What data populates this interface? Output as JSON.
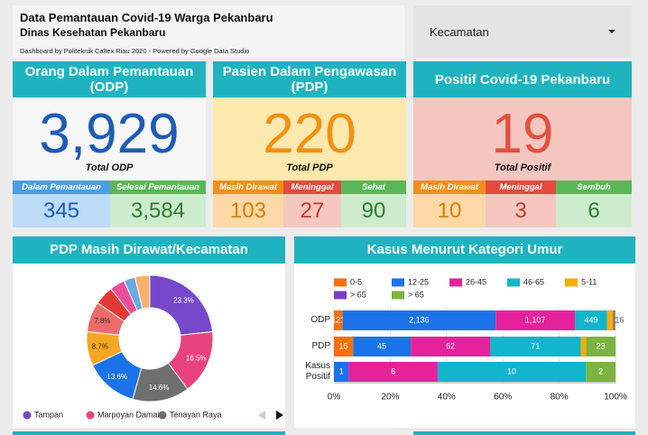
{
  "header": {
    "title": "Data Pemantauan Covid-19 Warga Pekanbaru",
    "subtitle": "Dinas Kesehatan Pekanbaru",
    "credit": "Dashboard by Politeknik Caltex Riau 2020 - Powered by Google Data Studio"
  },
  "filter": {
    "label": "Kecamatan"
  },
  "kpi_cards": [
    {
      "title": "Orang Dalam Pemantauan (ODP)",
      "value": "3,929",
      "total_label": "Total ODP",
      "breakdown": [
        {
          "label": "Dalam Pemantauan",
          "value": "345"
        },
        {
          "label": "Selesai Pemantauan",
          "value": "3,584"
        }
      ]
    },
    {
      "title": "Pasien Dalam Pengawasan (PDP)",
      "value": "220",
      "total_label": "Total PDP",
      "breakdown": [
        {
          "label": "Masih Dirawat",
          "value": "103"
        },
        {
          "label": "Meninggal",
          "value": "27"
        },
        {
          "label": "Sehat",
          "value": "90"
        }
      ]
    },
    {
      "title": "Positif Covid-19 Pekanbaru",
      "value": "19",
      "total_label": "Total Positif",
      "breakdown": [
        {
          "label": "Masih Dirawat",
          "value": "10"
        },
        {
          "label": "Meninggal",
          "value": "3"
        },
        {
          "label": "Sembuh",
          "value": "6"
        }
      ]
    }
  ],
  "chart_data": [
    {
      "type": "donut",
      "title": "PDP Masih Dirawat/Kecamatan",
      "categories": [
        "Tampan",
        "Marpoyan Damai",
        "Tenayan Raya",
        null,
        null,
        null,
        null,
        null,
        null,
        null
      ],
      "values": [
        23.3,
        16.5,
        14.6,
        13.6,
        8.7,
        7.8,
        4.9,
        3.9,
        2.9,
        3.8
      ],
      "value_labels": [
        "23.3%",
        "16.5%",
        "14.6%",
        "13.6%",
        "8.7%",
        "7.8%",
        null,
        null,
        null,
        null
      ],
      "colors": [
        "#7549c9",
        "#e8437d",
        "#6f6f6f",
        "#1a73e8",
        "#f5a623",
        "#ef6b6b",
        "#e53935",
        "#ec4f9a",
        "#6aa8e6",
        "#f6b26b"
      ]
    },
    {
      "type": "bar",
      "orientation": "horizontal",
      "stacking": "percent",
      "title": "Kasus Menurut Kategori Umur",
      "categories": [
        "ODP",
        "PDP",
        "Kasus Positif"
      ],
      "series": [
        {
          "name": "0-5",
          "color": "#fa6e0f",
          "values": [
            121,
            15,
            0
          ],
          "value_labels": [
            "121",
            "15",
            null
          ]
        },
        {
          "name": "12-25",
          "color": "#1a73e8",
          "values": [
            2136,
            45,
            1
          ],
          "value_labels": [
            "2,136",
            "45",
            "1"
          ]
        },
        {
          "name": "26-45",
          "color": "#e5229b",
          "values": [
            1107,
            62,
            6
          ],
          "value_labels": [
            "1,107",
            "62",
            "6"
          ]
        },
        {
          "name": "46-65",
          "color": "#12b5cb",
          "values": [
            449,
            71,
            10
          ],
          "value_labels": [
            "449",
            "71",
            "10"
          ]
        },
        {
          "name": "5-11",
          "color": "#f9ab00",
          "values": [
            84,
            4,
            0
          ],
          "value_labels": [
            null,
            "4",
            null
          ]
        },
        {
          "name": "> 65",
          "color": "#7b3fc4",
          "values": [
            16,
            0,
            0
          ],
          "value_labels": [
            null,
            null,
            null
          ]
        },
        {
          "name": "> 65",
          "color": "#7cb342",
          "values": [
            16,
            23,
            2
          ],
          "value_labels": [
            "16",
            "23",
            "2"
          ]
        }
      ],
      "xlim": [
        0,
        100
      ],
      "xticks": [
        {
          "value": 0,
          "label": "0%"
        },
        {
          "value": 20,
          "label": "20%"
        },
        {
          "value": 40,
          "label": "40%"
        },
        {
          "value": 60,
          "label": "60%"
        },
        {
          "value": 80,
          "label": "80%"
        },
        {
          "value": 100,
          "label": "100%"
        }
      ],
      "grid": true
    }
  ]
}
